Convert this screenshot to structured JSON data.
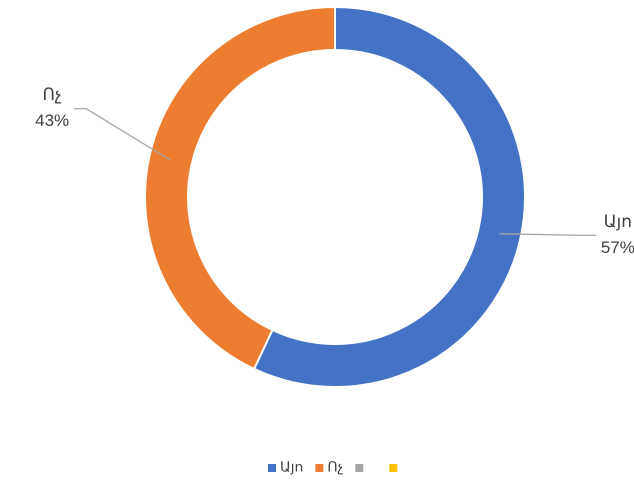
{
  "chart_data": {
    "type": "donut",
    "categories": [
      "Այո",
      "Ոչ",
      null,
      null
    ],
    "values": [
      57,
      43,
      0,
      0
    ],
    "value_labels": [
      "57%",
      "43%",
      null,
      null
    ],
    "colors": [
      "#4472c4",
      "#ed7d31",
      "#a5a5a5",
      "#ffc000"
    ],
    "legend": "bottom"
  }
}
